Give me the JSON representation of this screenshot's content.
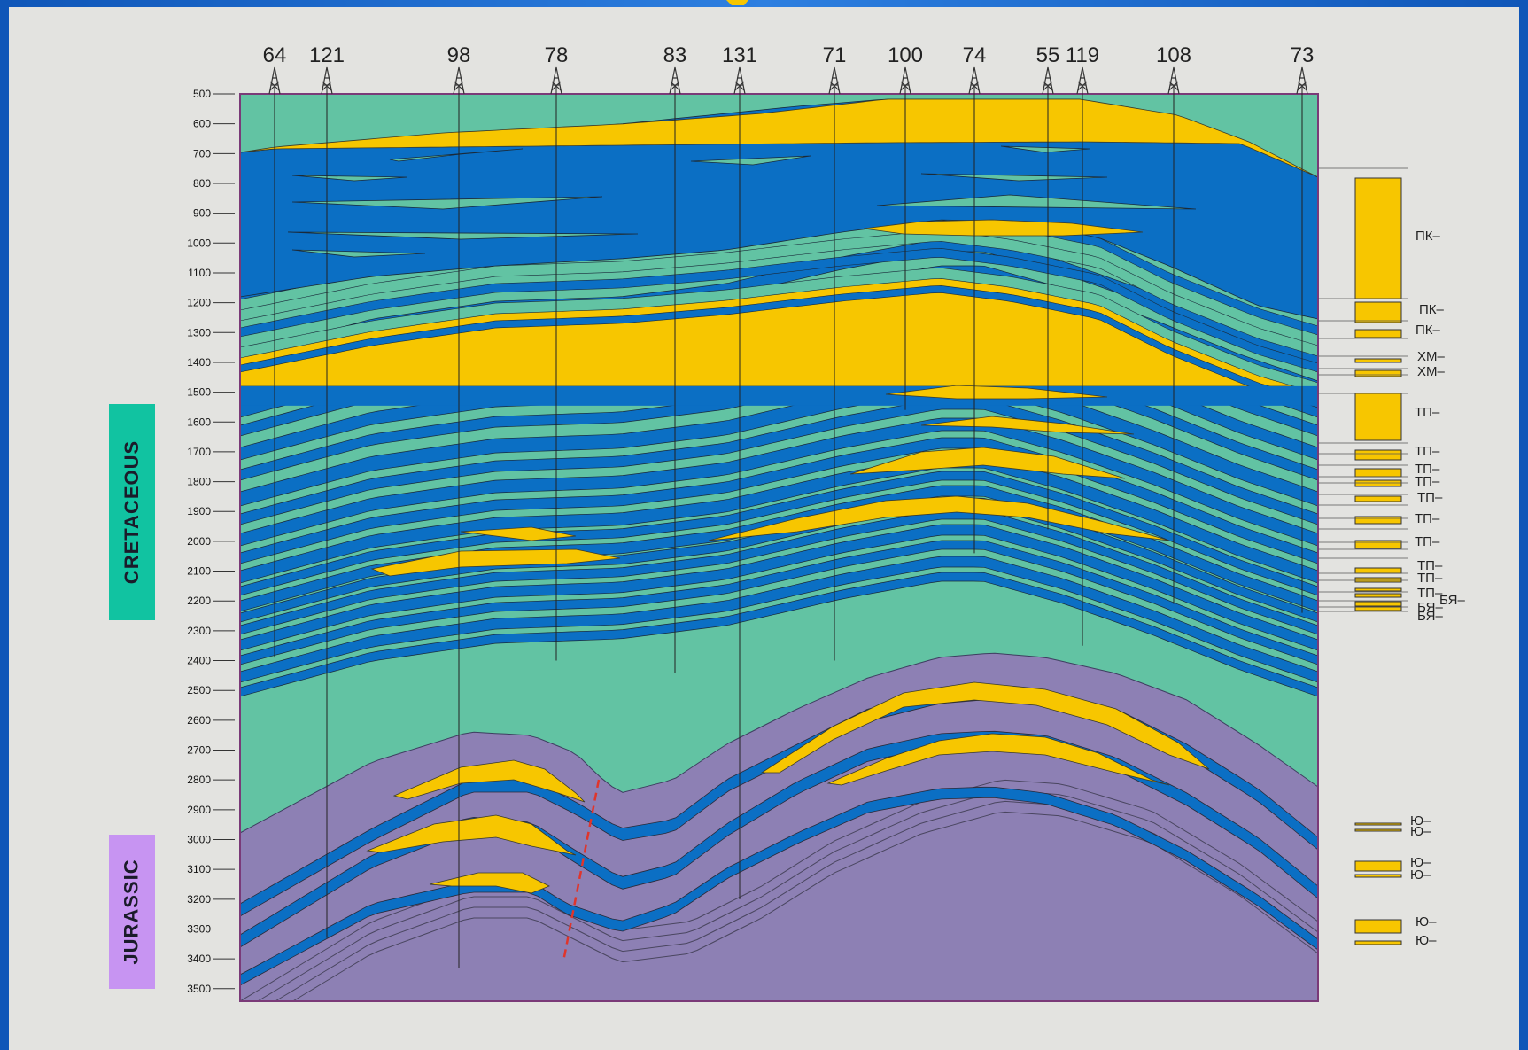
{
  "section": {
    "depth_axis": {
      "ticks": [
        500,
        600,
        700,
        800,
        900,
        1000,
        1100,
        1200,
        1300,
        1400,
        1500,
        1600,
        1700,
        1800,
        1900,
        2000,
        2100,
        2200,
        2300,
        2400,
        2500,
        2600,
        2700,
        2800,
        2900,
        3000,
        3100,
        3200,
        3300,
        3400,
        3500
      ]
    },
    "wells": [
      {
        "name": "64",
        "depth_bottom": 2390
      },
      {
        "name": "121",
        "depth_bottom": 3330
      },
      {
        "name": "98",
        "depth_bottom": 3430
      },
      {
        "name": "78",
        "depth_bottom": 2400
      },
      {
        "name": "83",
        "depth_bottom": 2440
      },
      {
        "name": "131",
        "depth_bottom": 3200
      },
      {
        "name": "71",
        "depth_bottom": 2400
      },
      {
        "name": "100",
        "depth_bottom": 1560
      },
      {
        "name": "74",
        "depth_bottom": 2040
      },
      {
        "name": "55",
        "depth_bottom": 1960
      },
      {
        "name": "119",
        "depth_bottom": 2350
      },
      {
        "name": "108",
        "depth_bottom": 2210
      },
      {
        "name": "73",
        "depth_bottom": 2240
      }
    ],
    "labels": {
      "cretaceous": "CRETACEOUS",
      "jurassic": "JURASSIC"
    },
    "legend": [
      {
        "text": "ПК–"
      },
      {
        "text": "ПК–"
      },
      {
        "text": "ПК–"
      },
      {
        "text": "ХМ–"
      },
      {
        "text": "ХМ–"
      },
      {
        "text": "ТП–"
      },
      {
        "text": "ТП–"
      },
      {
        "text": "ТП–"
      },
      {
        "text": "ТП–"
      },
      {
        "text": "ТП–"
      },
      {
        "text": "ТП–"
      },
      {
        "text": "ТП–"
      },
      {
        "text": "ТП–"
      },
      {
        "text": "ТП–"
      },
      {
        "text": "ТП–"
      },
      {
        "text": "БЯ–"
      },
      {
        "text": "БЯ–"
      },
      {
        "text": "БЯ–"
      },
      {
        "text": "Ю–"
      },
      {
        "text": "Ю–"
      },
      {
        "text": "Ю–"
      },
      {
        "text": "Ю–"
      },
      {
        "text": "Ю–"
      },
      {
        "text": "Ю–"
      }
    ],
    "colors": {
      "sandstone": "#f7c600",
      "shale_blue": "#0b6fc4",
      "clay_green": "#62c3a3",
      "jurassic": "#8d80b4",
      "fault": "#e0352b"
    }
  }
}
